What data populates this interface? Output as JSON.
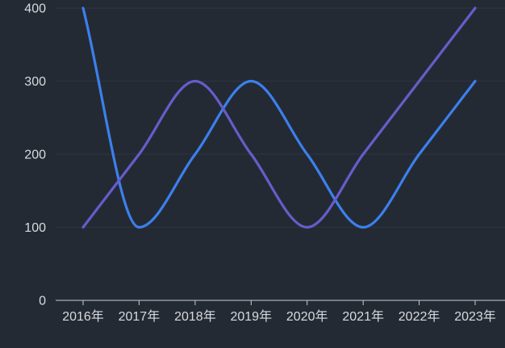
{
  "chart_data": {
    "type": "line",
    "smooth": true,
    "title": "",
    "xlabel": "",
    "ylabel": "",
    "categories": [
      "2016年",
      "2017年",
      "2018年",
      "2019年",
      "2020年",
      "2021年",
      "2022年",
      "2023年"
    ],
    "series": [
      {
        "id": "series-1",
        "color": "#3b80ee",
        "values": [
          400,
          100,
          200,
          300,
          200,
          100,
          200,
          300
        ]
      },
      {
        "id": "series-2",
        "color": "#665dca",
        "values": [
          100,
          200,
          300,
          200,
          100,
          200,
          300,
          400
        ]
      }
    ],
    "y_ticks": [
      0,
      100,
      200,
      300,
      400
    ],
    "ylim": [
      0,
      400
    ],
    "grid": true,
    "legend_position": "none",
    "colors": {
      "background": "#242a34",
      "gridline": "#2e3542",
      "axis_line": "#c9ccd2",
      "tick_label": "#d8dade"
    }
  }
}
